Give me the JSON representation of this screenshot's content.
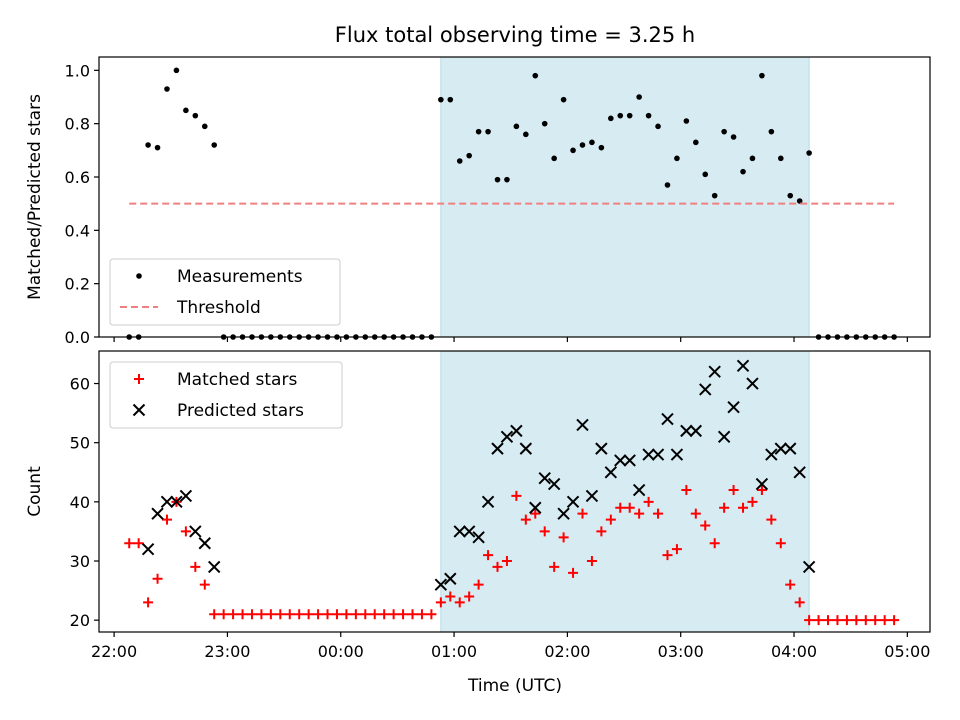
{
  "chart_data": [
    {
      "type": "scatter",
      "title": "Flux total observing time = 3.25 h",
      "xlabel": "",
      "ylabel": "Matched/Predicted stars",
      "xlim": [
        "21:52",
        "05:12"
      ],
      "ylim": [
        0,
        1.05
      ],
      "yticks": [
        "0.0",
        "0.2",
        "0.4",
        "0.6",
        "0.8",
        "1.0"
      ],
      "grid": false,
      "legend_position": "lower-left",
      "shaded_interval": [
        "00:53",
        "04:08"
      ],
      "shade_color": "#add8e6",
      "series": [
        {
          "name": "Measurements",
          "marker": "dot",
          "color": "#000000",
          "points": [
            [
              "22:08",
              0
            ],
            [
              "22:13",
              0
            ],
            [
              "22:18",
              0.72
            ],
            [
              "22:23",
              0.71
            ],
            [
              "22:28",
              0.93
            ],
            [
              "22:33",
              1.0
            ],
            [
              "22:38",
              0.85
            ],
            [
              "22:43",
              0.83
            ],
            [
              "22:48",
              0.79
            ],
            [
              "22:53",
              0.72
            ],
            [
              "22:58",
              0
            ],
            [
              "23:03",
              0
            ],
            [
              "23:08",
              0
            ],
            [
              "23:13",
              0
            ],
            [
              "23:18",
              0
            ],
            [
              "23:23",
              0
            ],
            [
              "23:28",
              0
            ],
            [
              "23:33",
              0
            ],
            [
              "23:38",
              0
            ],
            [
              "23:43",
              0
            ],
            [
              "23:48",
              0
            ],
            [
              "23:53",
              0
            ],
            [
              "23:58",
              0
            ],
            [
              "00:03",
              0
            ],
            [
              "00:08",
              0
            ],
            [
              "00:13",
              0
            ],
            [
              "00:18",
              0
            ],
            [
              "00:23",
              0
            ],
            [
              "00:28",
              0
            ],
            [
              "00:33",
              0
            ],
            [
              "00:38",
              0
            ],
            [
              "00:43",
              0
            ],
            [
              "00:48",
              0
            ],
            [
              "00:53",
              0.89
            ],
            [
              "00:58",
              0.89
            ],
            [
              "01:03",
              0.66
            ],
            [
              "01:08",
              0.68
            ],
            [
              "01:13",
              0.77
            ],
            [
              "01:18",
              0.77
            ],
            [
              "01:23",
              0.59
            ],
            [
              "01:28",
              0.59
            ],
            [
              "01:33",
              0.79
            ],
            [
              "01:38",
              0.76
            ],
            [
              "01:43",
              0.98
            ],
            [
              "01:48",
              0.8
            ],
            [
              "01:53",
              0.67
            ],
            [
              "01:58",
              0.89
            ],
            [
              "02:03",
              0.7
            ],
            [
              "02:08",
              0.72
            ],
            [
              "02:13",
              0.73
            ],
            [
              "02:18",
              0.71
            ],
            [
              "02:23",
              0.82
            ],
            [
              "02:28",
              0.83
            ],
            [
              "02:33",
              0.83
            ],
            [
              "02:38",
              0.9
            ],
            [
              "02:43",
              0.83
            ],
            [
              "02:48",
              0.79
            ],
            [
              "02:53",
              0.57
            ],
            [
              "02:58",
              0.67
            ],
            [
              "03:03",
              0.81
            ],
            [
              "03:08",
              0.73
            ],
            [
              "03:13",
              0.61
            ],
            [
              "03:18",
              0.53
            ],
            [
              "03:23",
              0.77
            ],
            [
              "03:28",
              0.75
            ],
            [
              "03:33",
              0.62
            ],
            [
              "03:38",
              0.67
            ],
            [
              "03:43",
              0.98
            ],
            [
              "03:48",
              0.77
            ],
            [
              "03:53",
              0.67
            ],
            [
              "03:58",
              0.53
            ],
            [
              "04:03",
              0.51
            ],
            [
              "04:08",
              0.69
            ],
            [
              "04:13",
              0
            ],
            [
              "04:18",
              0
            ],
            [
              "04:23",
              0
            ],
            [
              "04:28",
              0
            ],
            [
              "04:33",
              0
            ],
            [
              "04:38",
              0
            ],
            [
              "04:43",
              0
            ],
            [
              "04:48",
              0
            ],
            [
              "04:53",
              0
            ]
          ]
        },
        {
          "name": "Threshold",
          "type": "line",
          "style": "dashed",
          "color": "#f08080",
          "points": [
            [
              "22:08",
              0.5
            ],
            [
              "04:53",
              0.5
            ]
          ]
        }
      ]
    },
    {
      "type": "scatter",
      "title": "",
      "xlabel": "Time (UTC)",
      "ylabel": "Count",
      "xlim": [
        "21:52",
        "05:12"
      ],
      "ylim": [
        18,
        65.5
      ],
      "yticks": [
        "20",
        "30",
        "40",
        "50",
        "60"
      ],
      "xticks": [
        "22:00",
        "23:00",
        "00:00",
        "01:00",
        "02:00",
        "03:00",
        "04:00",
        "05:00"
      ],
      "grid": false,
      "legend_position": "top-left",
      "shaded_interval": [
        "00:53",
        "04:08"
      ],
      "shade_color": "#add8e6",
      "series": [
        {
          "name": "Matched stars",
          "marker": "plus",
          "color": "#ff0000",
          "points": [
            [
              "22:08",
              33
            ],
            [
              "22:13",
              33
            ],
            [
              "22:18",
              23
            ],
            [
              "22:23",
              27
            ],
            [
              "22:28",
              37
            ],
            [
              "22:33",
              40
            ],
            [
              "22:38",
              35
            ],
            [
              "22:43",
              29
            ],
            [
              "22:48",
              26
            ],
            [
              "22:53",
              21
            ],
            [
              "22:58",
              21
            ],
            [
              "23:03",
              21
            ],
            [
              "23:08",
              21
            ],
            [
              "23:13",
              21
            ],
            [
              "23:18",
              21
            ],
            [
              "23:23",
              21
            ],
            [
              "23:28",
              21
            ],
            [
              "23:33",
              21
            ],
            [
              "23:38",
              21
            ],
            [
              "23:43",
              21
            ],
            [
              "23:48",
              21
            ],
            [
              "23:53",
              21
            ],
            [
              "23:58",
              21
            ],
            [
              "00:03",
              21
            ],
            [
              "00:08",
              21
            ],
            [
              "00:13",
              21
            ],
            [
              "00:18",
              21
            ],
            [
              "00:23",
              21
            ],
            [
              "00:28",
              21
            ],
            [
              "00:33",
              21
            ],
            [
              "00:38",
              21
            ],
            [
              "00:43",
              21
            ],
            [
              "00:48",
              21
            ],
            [
              "00:53",
              23
            ],
            [
              "00:58",
              24
            ],
            [
              "01:03",
              23
            ],
            [
              "01:08",
              24
            ],
            [
              "01:13",
              26
            ],
            [
              "01:18",
              31
            ],
            [
              "01:23",
              29
            ],
            [
              "01:28",
              30
            ],
            [
              "01:33",
              41
            ],
            [
              "01:38",
              37
            ],
            [
              "01:43",
              38
            ],
            [
              "01:48",
              35
            ],
            [
              "01:53",
              29
            ],
            [
              "01:58",
              34
            ],
            [
              "02:03",
              28
            ],
            [
              "02:08",
              38
            ],
            [
              "02:13",
              30
            ],
            [
              "02:18",
              35
            ],
            [
              "02:23",
              37
            ],
            [
              "02:28",
              39
            ],
            [
              "02:33",
              39
            ],
            [
              "02:38",
              38
            ],
            [
              "02:43",
              40
            ],
            [
              "02:48",
              38
            ],
            [
              "02:53",
              31
            ],
            [
              "02:58",
              32
            ],
            [
              "03:03",
              42
            ],
            [
              "03:08",
              38
            ],
            [
              "03:13",
              36
            ],
            [
              "03:18",
              33
            ],
            [
              "03:23",
              39
            ],
            [
              "03:28",
              42
            ],
            [
              "03:33",
              39
            ],
            [
              "03:38",
              40
            ],
            [
              "03:43",
              42
            ],
            [
              "03:48",
              37
            ],
            [
              "03:53",
              33
            ],
            [
              "03:58",
              26
            ],
            [
              "04:03",
              23
            ],
            [
              "04:08",
              20
            ],
            [
              "04:13",
              20
            ],
            [
              "04:18",
              20
            ],
            [
              "04:23",
              20
            ],
            [
              "04:28",
              20
            ],
            [
              "04:33",
              20
            ],
            [
              "04:38",
              20
            ],
            [
              "04:43",
              20
            ],
            [
              "04:48",
              20
            ],
            [
              "04:53",
              20
            ]
          ]
        },
        {
          "name": "Predicted stars",
          "marker": "x",
          "color": "#000000",
          "points": [
            [
              "22:18",
              32
            ],
            [
              "22:23",
              38
            ],
            [
              "22:28",
              40
            ],
            [
              "22:33",
              40
            ],
            [
              "22:38",
              41
            ],
            [
              "22:43",
              35
            ],
            [
              "22:48",
              33
            ],
            [
              "22:53",
              29
            ],
            [
              "00:53",
              26
            ],
            [
              "00:58",
              27
            ],
            [
              "01:03",
              35
            ],
            [
              "01:08",
              35
            ],
            [
              "01:13",
              34
            ],
            [
              "01:18",
              40
            ],
            [
              "01:23",
              49
            ],
            [
              "01:28",
              51
            ],
            [
              "01:33",
              52
            ],
            [
              "01:38",
              49
            ],
            [
              "01:43",
              39
            ],
            [
              "01:48",
              44
            ],
            [
              "01:53",
              43
            ],
            [
              "01:58",
              38
            ],
            [
              "02:03",
              40
            ],
            [
              "02:08",
              53
            ],
            [
              "02:13",
              41
            ],
            [
              "02:18",
              49
            ],
            [
              "02:23",
              45
            ],
            [
              "02:28",
              47
            ],
            [
              "02:33",
              47
            ],
            [
              "02:38",
              42
            ],
            [
              "02:43",
              48
            ],
            [
              "02:48",
              48
            ],
            [
              "02:53",
              54
            ],
            [
              "02:58",
              48
            ],
            [
              "03:03",
              52
            ],
            [
              "03:08",
              52
            ],
            [
              "03:13",
              59
            ],
            [
              "03:18",
              62
            ],
            [
              "03:23",
              51
            ],
            [
              "03:28",
              56
            ],
            [
              "03:33",
              63
            ],
            [
              "03:38",
              60
            ],
            [
              "03:43",
              43
            ],
            [
              "03:48",
              48
            ],
            [
              "03:53",
              49
            ],
            [
              "03:58",
              49
            ],
            [
              "04:03",
              45
            ],
            [
              "04:08",
              29
            ]
          ]
        }
      ]
    }
  ]
}
